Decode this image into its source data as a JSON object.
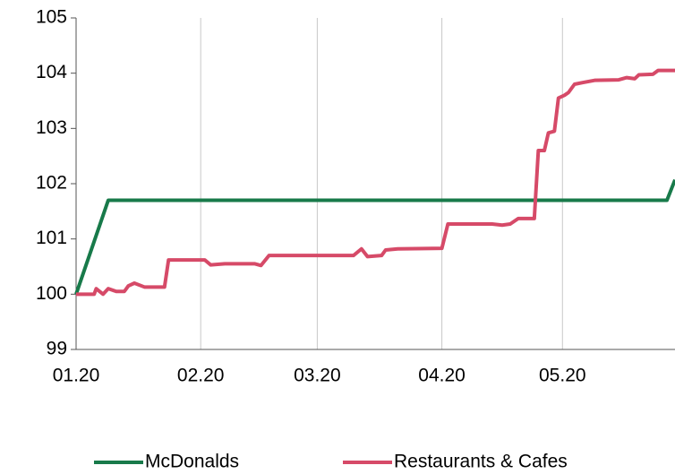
{
  "chart_data": {
    "type": "line",
    "xlim": [
      0,
      149
    ],
    "ylim": [
      99,
      105
    ],
    "xticks": [
      {
        "value": 0,
        "label": "01.20"
      },
      {
        "value": 31,
        "label": "02.20"
      },
      {
        "value": 60,
        "label": "03.20"
      },
      {
        "value": 91,
        "label": "04.20"
      },
      {
        "value": 121,
        "label": "05.20"
      }
    ],
    "yticks": [
      99,
      100,
      101,
      102,
      103,
      104,
      105
    ],
    "grid": true,
    "legend": "bottom",
    "series": [
      {
        "name": "McDonalds",
        "color": "#187a4a",
        "x": [
          0,
          8,
          147,
          149
        ],
        "values": [
          100,
          101.7,
          101.7,
          102.07
        ]
      },
      {
        "name": "Restaurants & Cafes",
        "color": "#d64a68",
        "x": [
          0,
          4.5,
          5,
          6.7,
          8,
          10,
          12,
          13,
          14.5,
          17,
          22,
          23,
          32,
          33.5,
          37,
          44.5,
          46,
          48,
          69,
          71,
          72.5,
          76,
          77,
          80,
          91,
          92.5,
          103.5,
          106,
          108,
          110,
          114,
          115,
          116.5,
          117.5,
          119,
          120,
          121.5,
          122.5,
          124,
          126,
          129,
          135,
          137,
          139,
          140,
          143.5,
          144.8,
          149
        ],
        "values": [
          100,
          100,
          100.1,
          100,
          100.1,
          100.05,
          100.05,
          100.15,
          100.2,
          100.13,
          100.13,
          100.62,
          100.62,
          100.53,
          100.55,
          100.55,
          100.52,
          100.7,
          100.7,
          100.82,
          100.68,
          100.7,
          100.8,
          100.82,
          100.83,
          101.27,
          101.27,
          101.25,
          101.27,
          101.37,
          101.37,
          102.6,
          102.6,
          102.92,
          102.95,
          103.55,
          103.6,
          103.65,
          103.8,
          103.83,
          103.87,
          103.88,
          103.92,
          103.9,
          103.97,
          103.98,
          104.05,
          104.05
        ]
      }
    ]
  }
}
